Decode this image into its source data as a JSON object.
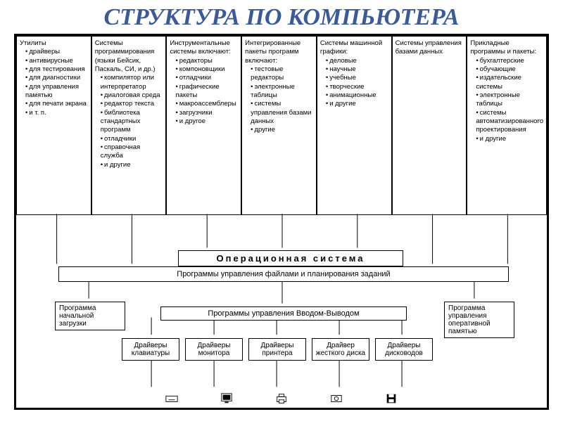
{
  "title": "СТРУКТУРА ПО КОМПЬЮТЕРА",
  "colors": {
    "title": "#3a5a9a",
    "border": "#000000",
    "bg": "#ffffff"
  },
  "columns": [
    {
      "heading": "Утилиты",
      "items": [
        "драйверы",
        "антивирусные",
        "для тестирования",
        "для диагностики",
        "для управления памятью",
        "для печати экрана",
        "и т. п."
      ]
    },
    {
      "heading": "Системы программирования (языки Бейсик, Паскаль, СИ, и др.)",
      "items": [
        "компилятор или интерпретатор",
        "диалоговая среда",
        "редактор текста",
        "библиотека стандартных программ",
        "отладчики",
        "справочная служба",
        "и другие"
      ]
    },
    {
      "heading": "Инструментальные системы включают:",
      "items": [
        "редакторы",
        "компоновщики",
        "отладчики",
        "графические пакеты",
        "макроассемблеры",
        "загрузчики",
        "и другое"
      ]
    },
    {
      "heading": "Интегрированные пакеты программ включают:",
      "items": [
        "тестовые редакторы",
        "электронные таблицы",
        "системы управления базами данных",
        "другие"
      ]
    },
    {
      "heading": "Системы машинной графики:",
      "items": [
        "деловые",
        "научные",
        "учебные",
        "творческие",
        "анимационные",
        "и другие"
      ]
    },
    {
      "heading": "Системы управления базами данных",
      "items": []
    },
    {
      "heading": "Прикладные программы и пакеты:",
      "items": [
        "бухгалтерские",
        "обучающие",
        "издательские системы",
        "электронные таблицы",
        "системы автоматизированного проектирования",
        "и другие"
      ]
    }
  ],
  "os_header": "Операционная система",
  "file_mgmt": "Программы управления файлами и планирования заданий",
  "io_mgmt": "Программы управления Вводом-Выводом",
  "boot": "Программа начальной загрузки",
  "mem_mgmt": "Программа управления оперативной памятью",
  "drivers": [
    "Драйверы клавиатуры",
    "Драйверы монитора",
    "Драйверы принтера",
    "Драйвер жесткого диска",
    "Драйверы дисководов"
  ],
  "icons": [
    "keyboard-icon",
    "monitor-icon",
    "printer-icon",
    "disk-icon",
    "floppy-icon"
  ]
}
